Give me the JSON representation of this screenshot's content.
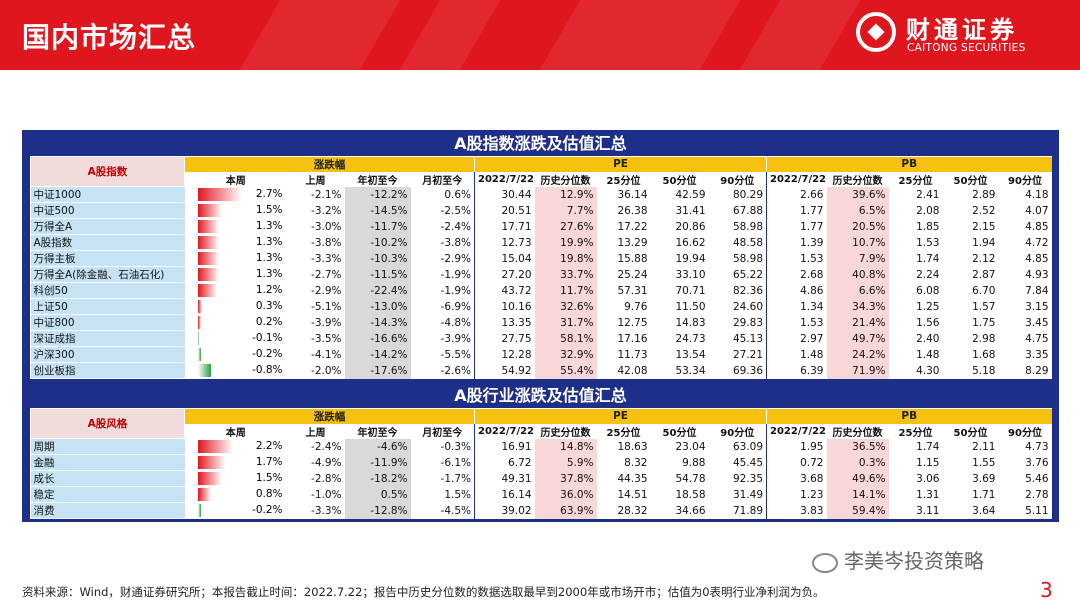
{
  "header": {
    "title": "国内市场汇总",
    "logo_cn": "财通证券",
    "logo_en": "CAITONG SECURITIES"
  },
  "colors": {
    "brand_red": "#e0161e",
    "table_blue": "#1e2f8a",
    "group_yellow": "#f6c20f",
    "name_blue": "#c5e3f5"
  },
  "groups": {
    "change": "涨跌幅",
    "pe": "PE",
    "pb": "PB"
  },
  "subheaders": [
    "本周",
    "上周",
    "年初至今",
    "月初至今",
    "2022/7/22",
    "历史分位数",
    "25分位",
    "50分位",
    "90分位",
    "2022/7/22",
    "历史分位数",
    "25分位",
    "50分位",
    "90分位"
  ],
  "index_table": {
    "title": "A股指数涨跌及估值汇总",
    "name_header": "A股指数",
    "rows": [
      {
        "name": "中证1000",
        "week": "2.7%",
        "week_v": 2.7,
        "last": "-2.1%",
        "ytd": "-12.2%",
        "mtd": "0.6%",
        "pe": "30.44",
        "pe_pct": "12.9%",
        "pe25": "36.14",
        "pe50": "42.59",
        "pe90": "80.29",
        "pb": "2.66",
        "pb_pct": "39.6%",
        "pb25": "2.41",
        "pb50": "2.89",
        "pb90": "4.18"
      },
      {
        "name": "中证500",
        "week": "1.5%",
        "week_v": 1.5,
        "last": "-3.2%",
        "ytd": "-14.5%",
        "mtd": "-2.5%",
        "pe": "20.51",
        "pe_pct": "7.7%",
        "pe25": "26.38",
        "pe50": "31.41",
        "pe90": "67.88",
        "pb": "1.77",
        "pb_pct": "6.5%",
        "pb25": "2.08",
        "pb50": "2.52",
        "pb90": "4.07"
      },
      {
        "name": "万得全A",
        "week": "1.3%",
        "week_v": 1.3,
        "last": "-3.0%",
        "ytd": "-11.7%",
        "mtd": "-2.4%",
        "pe": "17.71",
        "pe_pct": "27.6%",
        "pe25": "17.22",
        "pe50": "20.86",
        "pe90": "58.98",
        "pb": "1.77",
        "pb_pct": "20.5%",
        "pb25": "1.85",
        "pb50": "2.15",
        "pb90": "4.85"
      },
      {
        "name": "A股指数",
        "week": "1.3%",
        "week_v": 1.3,
        "last": "-3.8%",
        "ytd": "-10.2%",
        "mtd": "-3.8%",
        "pe": "12.73",
        "pe_pct": "19.9%",
        "pe25": "13.29",
        "pe50": "16.62",
        "pe90": "48.58",
        "pb": "1.39",
        "pb_pct": "10.7%",
        "pb25": "1.53",
        "pb50": "1.94",
        "pb90": "4.72"
      },
      {
        "name": "万得主板",
        "week": "1.3%",
        "week_v": 1.3,
        "last": "-3.3%",
        "ytd": "-10.3%",
        "mtd": "-2.9%",
        "pe": "15.04",
        "pe_pct": "19.8%",
        "pe25": "15.88",
        "pe50": "19.94",
        "pe90": "58.98",
        "pb": "1.53",
        "pb_pct": "7.9%",
        "pb25": "1.74",
        "pb50": "2.12",
        "pb90": "4.85"
      },
      {
        "name": "万得全A(除金融、石油石化)",
        "week": "1.3%",
        "week_v": 1.3,
        "last": "-2.7%",
        "ytd": "-11.5%",
        "mtd": "-1.9%",
        "pe": "27.20",
        "pe_pct": "33.7%",
        "pe25": "25.24",
        "pe50": "33.10",
        "pe90": "65.22",
        "pb": "2.68",
        "pb_pct": "40.8%",
        "pb25": "2.24",
        "pb50": "2.87",
        "pb90": "4.93"
      },
      {
        "name": "科创50",
        "week": "1.2%",
        "week_v": 1.2,
        "last": "-2.9%",
        "ytd": "-22.4%",
        "mtd": "-1.9%",
        "pe": "43.72",
        "pe_pct": "11.7%",
        "pe25": "57.31",
        "pe50": "70.71",
        "pe90": "82.36",
        "pb": "4.86",
        "pb_pct": "6.6%",
        "pb25": "6.08",
        "pb50": "6.70",
        "pb90": "7.84"
      },
      {
        "name": "上证50",
        "week": "0.3%",
        "week_v": 0.3,
        "last": "-5.1%",
        "ytd": "-13.0%",
        "mtd": "-6.9%",
        "pe": "10.16",
        "pe_pct": "32.6%",
        "pe25": "9.76",
        "pe50": "11.50",
        "pe90": "24.60",
        "pb": "1.34",
        "pb_pct": "34.3%",
        "pb25": "1.25",
        "pb50": "1.57",
        "pb90": "3.15"
      },
      {
        "name": "中证800",
        "week": "0.2%",
        "week_v": 0.2,
        "last": "-3.9%",
        "ytd": "-14.3%",
        "mtd": "-4.8%",
        "pe": "13.35",
        "pe_pct": "31.7%",
        "pe25": "12.75",
        "pe50": "14.83",
        "pe90": "29.83",
        "pb": "1.53",
        "pb_pct": "21.4%",
        "pb25": "1.56",
        "pb50": "1.75",
        "pb90": "3.45"
      },
      {
        "name": "深证成指",
        "week": "-0.1%",
        "week_v": -0.1,
        "last": "-3.5%",
        "ytd": "-16.6%",
        "mtd": "-3.9%",
        "pe": "27.75",
        "pe_pct": "58.1%",
        "pe25": "17.16",
        "pe50": "24.73",
        "pe90": "45.13",
        "pb": "2.97",
        "pb_pct": "49.7%",
        "pb25": "2.40",
        "pb50": "2.98",
        "pb90": "4.75"
      },
      {
        "name": "沪深300",
        "week": "-0.2%",
        "week_v": -0.2,
        "last": "-4.1%",
        "ytd": "-14.2%",
        "mtd": "-5.5%",
        "pe": "12.28",
        "pe_pct": "32.9%",
        "pe25": "11.73",
        "pe50": "13.54",
        "pe90": "27.21",
        "pb": "1.48",
        "pb_pct": "24.2%",
        "pb25": "1.48",
        "pb50": "1.68",
        "pb90": "3.35"
      },
      {
        "name": "创业板指",
        "week": "-0.8%",
        "week_v": -0.8,
        "last": "-2.0%",
        "ytd": "-17.6%",
        "mtd": "-2.6%",
        "pe": "54.92",
        "pe_pct": "55.4%",
        "pe25": "42.08",
        "pe50": "53.34",
        "pe90": "69.36",
        "pb": "6.39",
        "pb_pct": "71.9%",
        "pb25": "4.30",
        "pb50": "5.18",
        "pb90": "8.29"
      }
    ]
  },
  "sector_table": {
    "title": "A股行业涨跌及估值汇总",
    "name_header": "A股风格",
    "rows": [
      {
        "name": "周期",
        "week": "2.2%",
        "week_v": 2.2,
        "last": "-2.4%",
        "ytd": "-4.6%",
        "mtd": "-0.3%",
        "pe": "16.91",
        "pe_pct": "14.8%",
        "pe25": "18.63",
        "pe50": "23.04",
        "pe90": "63.09",
        "pb": "1.95",
        "pb_pct": "36.5%",
        "pb25": "1.74",
        "pb50": "2.11",
        "pb90": "4.73"
      },
      {
        "name": "金融",
        "week": "1.7%",
        "week_v": 1.7,
        "last": "-4.9%",
        "ytd": "-11.9%",
        "mtd": "-6.1%",
        "pe": "6.72",
        "pe_pct": "5.9%",
        "pe25": "8.32",
        "pe50": "9.88",
        "pe90": "45.45",
        "pb": "0.72",
        "pb_pct": "0.3%",
        "pb25": "1.15",
        "pb50": "1.55",
        "pb90": "3.76"
      },
      {
        "name": "成长",
        "week": "1.5%",
        "week_v": 1.5,
        "last": "-2.8%",
        "ytd": "-18.2%",
        "mtd": "-1.7%",
        "pe": "49.31",
        "pe_pct": "37.8%",
        "pe25": "44.35",
        "pe50": "54.78",
        "pe90": "92.35",
        "pb": "3.68",
        "pb_pct": "49.6%",
        "pb25": "3.06",
        "pb50": "3.69",
        "pb90": "5.46"
      },
      {
        "name": "稳定",
        "week": "0.8%",
        "week_v": 0.8,
        "last": "-1.0%",
        "ytd": "0.5%",
        "mtd": "1.5%",
        "pe": "16.14",
        "pe_pct": "36.0%",
        "pe25": "14.51",
        "pe50": "18.58",
        "pe90": "31.49",
        "pb": "1.23",
        "pb_pct": "14.1%",
        "pb25": "1.31",
        "pb50": "1.71",
        "pb90": "2.78"
      },
      {
        "name": "消费",
        "week": "-0.2%",
        "week_v": -0.2,
        "last": "-3.3%",
        "ytd": "-12.8%",
        "mtd": "-4.5%",
        "pe": "39.02",
        "pe_pct": "63.9%",
        "pe25": "28.32",
        "pe50": "34.66",
        "pe90": "71.89",
        "pb": "3.83",
        "pb_pct": "59.4%",
        "pb25": "3.11",
        "pb50": "3.64",
        "pb90": "5.11"
      }
    ]
  },
  "wechat": "李美岑投资策略",
  "source": "资料来源：Wind，财通证券研究所；本报告截止时间：2022.7.22；报告中历史分位数的数据选取最早到2000年或市场开市；估值为0表明行业净利润为负。",
  "page_number": "3"
}
